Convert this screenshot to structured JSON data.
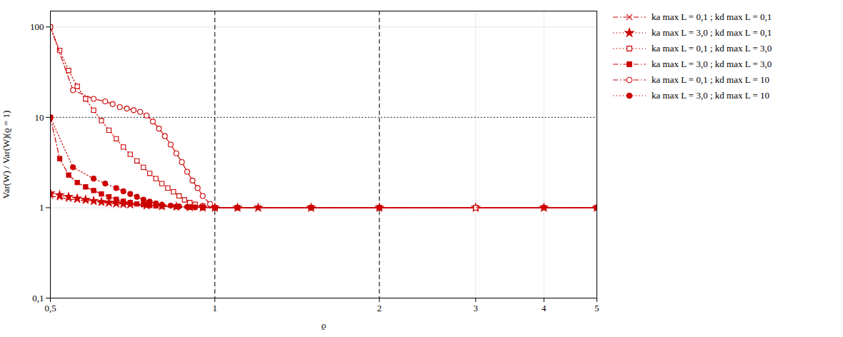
{
  "chart_data": {
    "type": "line",
    "xlabel": "ϱ",
    "ylabel": "Var(W) / Var(W)(ϱ = 1)",
    "log": true,
    "grid": true,
    "legend": "right",
    "xlim": [
      0.5,
      5.0
    ],
    "ylim": [
      0.1,
      150
    ],
    "xticks": [
      {
        "value": 0.5,
        "label": "0,5"
      },
      1,
      2,
      3,
      4,
      5
    ],
    "yticks": [
      {
        "value": 0.1,
        "label": "0,1"
      },
      1,
      10,
      100
    ],
    "vlines": [
      1.0,
      2.0
    ],
    "hline": 10.0,
    "series": [
      {
        "name": "ka max L = 0,1 ;  kd max L = 0,1",
        "color": "#cc0000",
        "marker": "x",
        "line_style": "dashdot",
        "x": [
          0.5,
          0.52,
          0.54,
          0.56,
          0.58,
          0.6,
          0.62,
          0.64,
          0.66,
          0.68,
          0.7,
          0.75,
          0.8,
          0.85,
          0.9,
          0.95,
          1.0,
          1.1,
          1.2,
          1.5,
          2.0,
          3.0,
          4.0,
          5.0
        ],
        "values": [
          1.35,
          1.3,
          1.25,
          1.22,
          1.19,
          1.16,
          1.14,
          1.12,
          1.1,
          1.09,
          1.08,
          1.055,
          1.035,
          1.022,
          1.013,
          1.007,
          1.0,
          1.0,
          1.0,
          1.0,
          1.0,
          1.0,
          1.0,
          1.0
        ]
      },
      {
        "name": "ka max L = 3,0 ;  kd max L = 0,1",
        "color": "#cc0000",
        "marker": "star",
        "line_style": "dotted",
        "x": [
          0.5,
          0.52,
          0.54,
          0.56,
          0.58,
          0.6,
          0.62,
          0.64,
          0.66,
          0.68,
          0.7,
          0.75,
          0.8,
          0.85,
          0.9,
          0.95,
          1.0,
          1.1,
          1.2,
          1.5,
          2.0,
          3.0,
          4.0,
          5.0
        ],
        "values": [
          1.45,
          1.38,
          1.32,
          1.27,
          1.23,
          1.19,
          1.16,
          1.14,
          1.12,
          1.1,
          1.09,
          1.065,
          1.045,
          1.028,
          1.016,
          1.008,
          1.0,
          1.0,
          1.0,
          1.0,
          1.0,
          1.0,
          1.0,
          1.0
        ]
      },
      {
        "name": "ka max L = 0,1 ;  kd max L = 3,0",
        "color": "#cc0000",
        "marker": "open-square",
        "line_style": "dotted",
        "x": [
          0.5,
          0.52,
          0.54,
          0.56,
          0.58,
          0.6,
          0.62,
          0.64,
          0.66,
          0.68,
          0.7,
          0.72,
          0.74,
          0.76,
          0.78,
          0.8,
          0.82,
          0.84,
          0.86,
          0.88,
          0.9,
          0.92,
          0.95,
          1.0,
          1.1,
          1.5,
          2.0,
          3.0,
          5.0
        ],
        "values": [
          100,
          55,
          33,
          22,
          16,
          12,
          9.2,
          7.2,
          5.8,
          4.7,
          3.9,
          3.3,
          2.8,
          2.4,
          2.1,
          1.85,
          1.65,
          1.5,
          1.35,
          1.22,
          1.14,
          1.09,
          1.04,
          1.0,
          1.0,
          1.0,
          1.0,
          1.0,
          1.0
        ]
      },
      {
        "name": "ka max L = 3,0 ;  kd max L = 3,0",
        "color": "#cc0000",
        "marker": "square",
        "line_style": "dashdot",
        "x": [
          0.5,
          0.52,
          0.54,
          0.56,
          0.58,
          0.6,
          0.62,
          0.64,
          0.66,
          0.68,
          0.7,
          0.72,
          0.74,
          0.76,
          0.78,
          0.8,
          0.85,
          0.9,
          0.95,
          1.0,
          1.1,
          1.5,
          2.0,
          3.0,
          4.0,
          5.0
        ],
        "values": [
          10.0,
          3.5,
          2.3,
          1.9,
          1.7,
          1.55,
          1.42,
          1.32,
          1.24,
          1.18,
          1.14,
          1.1,
          1.08,
          1.06,
          1.05,
          1.04,
          1.025,
          1.015,
          1.008,
          1.0,
          1.0,
          1.0,
          1.0,
          1.0,
          1.0,
          1.0
        ]
      },
      {
        "name": "ka max L = 0,1 ;  kd max L = 10",
        "color": "#cc0000",
        "marker": "open-circle",
        "line_style": "dashdot",
        "x": [
          0.5,
          0.55,
          0.6,
          0.63,
          0.65,
          0.67,
          0.69,
          0.71,
          0.73,
          0.75,
          0.77,
          0.79,
          0.81,
          0.83,
          0.85,
          0.87,
          0.89,
          0.91,
          0.93,
          0.95,
          0.98,
          1.0,
          1.1,
          1.5,
          2.0,
          3.0,
          5.0
        ],
        "values": [
          100,
          20,
          16,
          15,
          14,
          13,
          12.5,
          12,
          11.5,
          10.5,
          9.0,
          7.5,
          6.2,
          5.0,
          4.0,
          3.2,
          2.5,
          2.0,
          1.65,
          1.35,
          1.1,
          1.0,
          1.0,
          1.0,
          1.0,
          1.0,
          1.0
        ]
      },
      {
        "name": "ka max L = 3,0 ;  kd max L = 10",
        "color": "#cc0000",
        "marker": "circle",
        "line_style": "dotted",
        "x": [
          0.5,
          0.55,
          0.6,
          0.63,
          0.66,
          0.68,
          0.7,
          0.72,
          0.74,
          0.76,
          0.78,
          0.8,
          0.83,
          0.86,
          0.89,
          0.92,
          0.95,
          1.0,
          1.1,
          1.5,
          2.0,
          5.0
        ],
        "values": [
          10.0,
          2.8,
          2.1,
          1.85,
          1.65,
          1.52,
          1.42,
          1.32,
          1.23,
          1.17,
          1.12,
          1.08,
          1.055,
          1.035,
          1.02,
          1.01,
          1.005,
          1.0,
          1.0,
          1.0,
          1.0,
          1.0
        ]
      }
    ]
  }
}
